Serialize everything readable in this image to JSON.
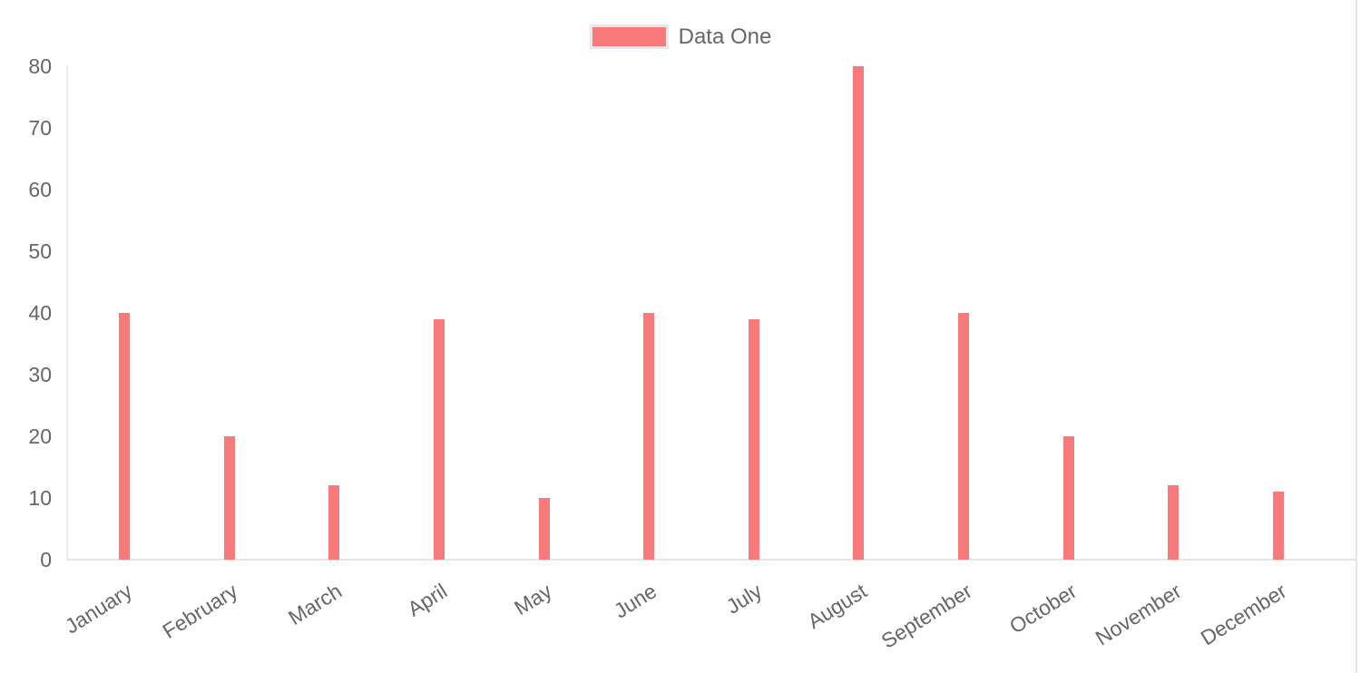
{
  "chart_data": {
    "type": "bar",
    "title": "",
    "xlabel": "",
    "ylabel": "",
    "categories": [
      "January",
      "February",
      "March",
      "April",
      "May",
      "June",
      "July",
      "August",
      "September",
      "October",
      "November",
      "December"
    ],
    "series": [
      {
        "name": "Data One",
        "color": "#f87979",
        "values": [
          40,
          20,
          12,
          39,
          10,
          40,
          39,
          80,
          40,
          20,
          12,
          11
        ]
      }
    ],
    "ylim": [
      0,
      80
    ],
    "y_ticks": [
      0,
      10,
      20,
      30,
      40,
      50,
      60,
      70,
      80
    ],
    "grid": false,
    "legend_position": "top",
    "tick_label_color": "#666666",
    "axis_line_color": "#ebebeb"
  }
}
